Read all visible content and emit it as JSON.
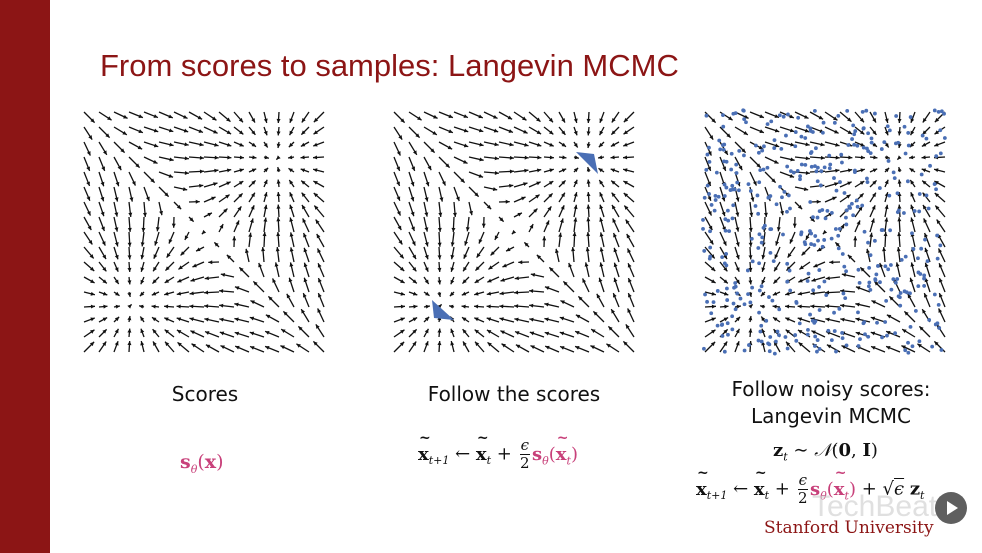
{
  "slide": {
    "title": "From scores to samples: Langevin MCMC",
    "panels": [
      {
        "caption_line1": "Scores",
        "caption_line2": ""
      },
      {
        "caption_line1": "Follow the scores",
        "caption_line2": ""
      },
      {
        "caption_line1": "Follow noisy scores:",
        "caption_line2": "Langevin MCMC"
      }
    ],
    "institution": "Stanford University",
    "watermark": "TechBeat"
  },
  "colors": {
    "brand_red": "#8c1515",
    "score_pink": "#c8407a",
    "sample_blue": "#4a6fb5"
  },
  "icons": {
    "play": "play-icon"
  }
}
